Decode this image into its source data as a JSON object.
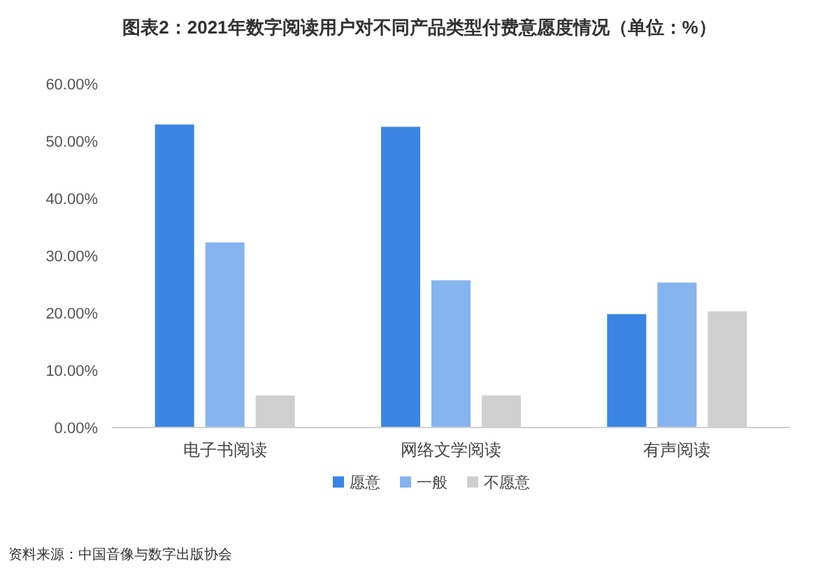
{
  "chart_data": {
    "type": "bar",
    "title": "图表2：2021年数字阅读用户对不同产品类型付费意愿度情况（单位：%）",
    "categories": [
      "电子书阅读",
      "网络文学阅读",
      "有声阅读"
    ],
    "series": [
      {
        "name": "愿意",
        "color": "#3a85e3",
        "values": [
          52.9,
          52.5,
          19.8
        ]
      },
      {
        "name": "一般",
        "color": "#86b4ef",
        "values": [
          32.3,
          25.7,
          25.3
        ]
      },
      {
        "name": "不愿意",
        "color": "#cfcfcf",
        "values": [
          5.6,
          5.6,
          20.3
        ]
      }
    ],
    "ylim": [
      0,
      60
    ],
    "yticks": [
      {
        "value": 0,
        "label": "0.00%"
      },
      {
        "value": 10,
        "label": "10.00%"
      },
      {
        "value": 20,
        "label": "20.00%"
      },
      {
        "value": 30,
        "label": "30.00%"
      },
      {
        "value": 40,
        "label": "40.00%"
      },
      {
        "value": 50,
        "label": "50.00%"
      },
      {
        "value": 60,
        "label": "60.00%"
      }
    ],
    "grid": false,
    "legend": "bottom",
    "annotations": [
      "资料来源：中国音像与数字出版协会"
    ]
  }
}
